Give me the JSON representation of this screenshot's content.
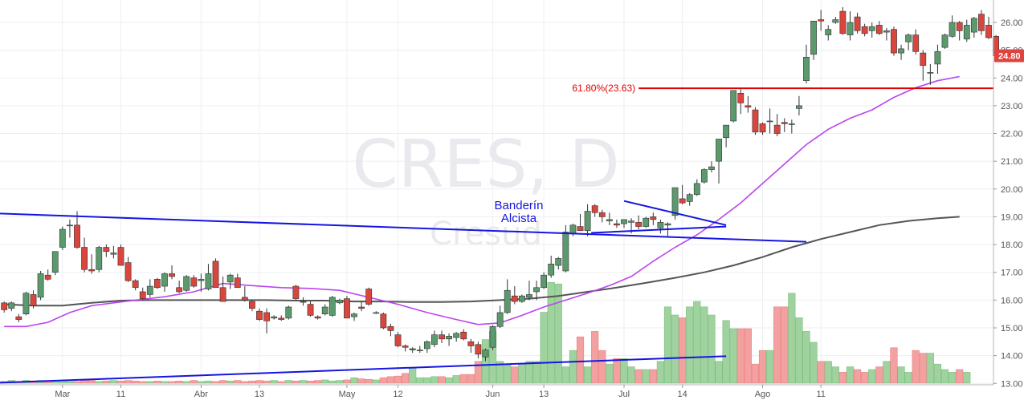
{
  "chart_data": {
    "type": "candlestick",
    "symbol": "CRES",
    "interval": "D",
    "watermark_title": "CRES, D",
    "watermark_subtitle": "Cresud",
    "ylim": [
      12.95,
      26.75
    ],
    "y_ticks": [
      "13.00",
      "14.00",
      "15.00",
      "16.00",
      "17.00",
      "18.00",
      "19.00",
      "20.00",
      "21.00",
      "22.00",
      "23.00",
      "24.00",
      "25.00",
      "26.00"
    ],
    "x_ticks": [
      {
        "bar": 8,
        "label": "Mar"
      },
      {
        "bar": 16,
        "label": "11"
      },
      {
        "bar": 27,
        "label": "Abr"
      },
      {
        "bar": 35,
        "label": "13"
      },
      {
        "bar": 47,
        "label": "May"
      },
      {
        "bar": 54,
        "label": "12"
      },
      {
        "bar": 67,
        "label": "Jun"
      },
      {
        "bar": 74,
        "label": "13"
      },
      {
        "bar": 85,
        "label": "Jul"
      },
      {
        "bar": 93,
        "label": "14"
      },
      {
        "bar": 104,
        "label": "Ago"
      },
      {
        "bar": 112,
        "label": "11"
      }
    ],
    "colors": {
      "up": "#5b9a6c",
      "down": "#d9463e",
      "up_vol": "#9fd29f",
      "down_vol": "#f3a0a0",
      "ma_fast": "#bb44ee",
      "ma_slow": "#555555",
      "trend": "#1515e0",
      "fib": "#e00000"
    },
    "candles": [
      [
        15.9,
        15.95,
        15.55,
        15.65
      ],
      [
        15.7,
        15.95,
        15.6,
        15.9
      ],
      [
        15.4,
        15.5,
        15.2,
        15.3
      ],
      [
        15.5,
        16.3,
        15.45,
        16.25
      ],
      [
        16.2,
        16.35,
        15.7,
        15.8
      ],
      [
        16.1,
        17.05,
        16.0,
        16.95
      ],
      [
        16.9,
        17.1,
        16.7,
        16.75
      ],
      [
        17.0,
        17.75,
        16.9,
        17.75
      ],
      [
        17.9,
        18.65,
        17.8,
        18.55
      ],
      [
        18.7,
        18.9,
        18.25,
        18.7
      ],
      [
        18.7,
        19.2,
        17.85,
        17.9
      ],
      [
        17.9,
        18.25,
        17.0,
        17.1
      ],
      [
        17.1,
        17.65,
        16.95,
        17.05
      ],
      [
        17.1,
        17.95,
        17.0,
        17.9
      ],
      [
        17.9,
        18.0,
        17.55,
        17.75
      ],
      [
        17.65,
        17.95,
        17.5,
        17.7
      ],
      [
        17.9,
        18.0,
        17.25,
        17.25
      ],
      [
        17.35,
        17.55,
        16.65,
        16.7
      ],
      [
        16.7,
        16.75,
        16.35,
        16.45
      ],
      [
        16.3,
        16.45,
        16.0,
        16.05
      ],
      [
        16.2,
        16.75,
        16.1,
        16.5
      ],
      [
        16.75,
        16.8,
        16.4,
        16.45
      ],
      [
        16.5,
        17.0,
        16.3,
        16.95
      ],
      [
        16.95,
        17.25,
        16.75,
        16.85
      ],
      [
        16.45,
        16.7,
        16.25,
        16.3
      ],
      [
        16.35,
        16.9,
        16.3,
        16.85
      ],
      [
        16.8,
        16.9,
        16.45,
        16.5
      ],
      [
        16.7,
        16.95,
        16.3,
        16.75
      ],
      [
        16.4,
        17.3,
        16.35,
        16.95
      ],
      [
        17.4,
        17.5,
        16.45,
        16.45
      ],
      [
        16.45,
        16.85,
        15.95,
        15.95
      ],
      [
        16.65,
        16.95,
        16.4,
        16.9
      ],
      [
        16.8,
        16.95,
        16.45,
        16.45
      ],
      [
        16.1,
        16.5,
        15.95,
        16.0
      ],
      [
        15.95,
        16.0,
        15.6,
        15.7
      ],
      [
        15.6,
        15.7,
        15.25,
        15.3
      ],
      [
        15.55,
        15.7,
        14.8,
        15.25
      ],
      [
        15.35,
        15.45,
        15.3,
        15.4
      ],
      [
        15.35,
        15.45,
        15.25,
        15.3
      ],
      [
        15.35,
        15.8,
        15.3,
        15.75
      ],
      [
        16.5,
        16.55,
        16.0,
        16.05
      ],
      [
        15.95,
        16.1,
        15.8,
        15.95
      ],
      [
        15.85,
        15.95,
        15.4,
        15.45
      ],
      [
        15.4,
        15.45,
        15.3,
        15.35
      ],
      [
        15.5,
        15.85,
        15.45,
        15.75
      ],
      [
        15.45,
        16.15,
        15.4,
        16.1
      ],
      [
        15.9,
        16.05,
        15.85,
        16.0
      ],
      [
        16.05,
        16.15,
        15.35,
        15.35
      ],
      [
        15.4,
        15.55,
        15.25,
        15.5
      ],
      [
        15.75,
        15.95,
        15.6,
        15.7
      ],
      [
        16.4,
        16.45,
        15.8,
        15.85
      ],
      [
        15.55,
        15.6,
        15.5,
        15.55
      ],
      [
        15.5,
        15.55,
        14.95,
        15.0
      ],
      [
        15.05,
        15.15,
        14.7,
        14.9
      ],
      [
        14.75,
        14.85,
        14.3,
        14.35
      ],
      [
        14.35,
        14.4,
        14.15,
        14.3
      ],
      [
        14.2,
        14.3,
        14.1,
        14.25
      ],
      [
        14.2,
        14.35,
        14.1,
        14.2
      ],
      [
        14.25,
        14.55,
        14.1,
        14.5
      ],
      [
        14.4,
        14.9,
        14.3,
        14.75
      ],
      [
        14.75,
        14.9,
        14.45,
        14.6
      ],
      [
        14.6,
        14.8,
        14.35,
        14.7
      ],
      [
        14.65,
        14.85,
        14.5,
        14.8
      ],
      [
        14.85,
        14.95,
        14.55,
        14.6
      ],
      [
        14.5,
        14.6,
        14.1,
        14.35
      ],
      [
        14.4,
        14.5,
        13.9,
        14.05
      ],
      [
        13.95,
        14.25,
        13.8,
        14.2
      ],
      [
        14.3,
        15.1,
        14.2,
        15.05
      ],
      [
        15.05,
        15.8,
        15.0,
        15.55
      ],
      [
        15.55,
        16.75,
        15.5,
        16.35
      ],
      [
        16.15,
        16.5,
        15.85,
        15.95
      ],
      [
        15.95,
        16.2,
        15.9,
        16.15
      ],
      [
        16.1,
        16.7,
        16.0,
        16.2
      ],
      [
        16.3,
        16.7,
        16.0,
        16.45
      ],
      [
        16.45,
        17.0,
        16.4,
        16.9
      ],
      [
        16.9,
        17.6,
        16.8,
        17.3
      ],
      [
        17.25,
        17.55,
        17.1,
        17.5
      ],
      [
        17.05,
        18.7,
        17.0,
        18.45
      ],
      [
        18.4,
        18.75,
        18.3,
        18.7
      ],
      [
        18.65,
        19.1,
        18.5,
        18.5
      ],
      [
        18.5,
        19.45,
        18.3,
        19.2
      ],
      [
        19.4,
        19.45,
        19.0,
        19.15
      ],
      [
        19.15,
        19.25,
        18.8,
        19.0
      ],
      [
        18.85,
        19.15,
        18.7,
        18.9
      ],
      [
        18.75,
        18.9,
        18.6,
        18.7
      ],
      [
        18.75,
        18.9,
        18.6,
        18.9
      ],
      [
        18.8,
        18.95,
        18.4,
        18.85
      ],
      [
        18.8,
        19.05,
        18.55,
        18.65
      ],
      [
        18.65,
        19.0,
        18.6,
        18.95
      ],
      [
        19.0,
        19.15,
        18.7,
        18.9
      ],
      [
        18.6,
        18.9,
        18.4,
        18.8
      ],
      [
        18.7,
        18.8,
        18.3,
        18.75
      ],
      [
        19.05,
        20.05,
        18.9,
        20.05
      ],
      [
        19.65,
        20.15,
        19.45,
        19.5
      ],
      [
        19.55,
        19.85,
        19.4,
        19.8
      ],
      [
        19.8,
        20.35,
        19.75,
        20.2
      ],
      [
        20.25,
        20.75,
        20.2,
        20.7
      ],
      [
        20.7,
        21.0,
        20.6,
        20.8
      ],
      [
        21.0,
        21.75,
        20.2,
        21.8
      ],
      [
        21.85,
        22.3,
        21.5,
        22.3
      ],
      [
        22.45,
        23.55,
        22.4,
        23.55
      ],
      [
        23.45,
        23.6,
        22.7,
        23.1
      ],
      [
        23.0,
        23.35,
        22.75,
        22.95
      ],
      [
        22.85,
        22.95,
        21.95,
        22.05
      ],
      [
        22.35,
        22.4,
        21.95,
        22.05
      ],
      [
        22.45,
        22.9,
        22.0,
        22.45
      ],
      [
        22.3,
        22.7,
        21.9,
        22.0
      ],
      [
        22.4,
        22.55,
        22.05,
        22.35
      ],
      [
        22.35,
        22.5,
        22.0,
        22.35
      ],
      [
        22.9,
        23.35,
        22.65,
        23.0
      ],
      [
        23.9,
        25.2,
        23.8,
        24.75
      ],
      [
        24.85,
        26.0,
        24.65,
        26.05
      ],
      [
        26.1,
        26.45,
        25.7,
        26.05
      ],
      [
        25.55,
        25.9,
        25.35,
        25.75
      ],
      [
        26.0,
        26.2,
        25.95,
        26.1
      ],
      [
        26.4,
        26.55,
        25.55,
        25.6
      ],
      [
        25.55,
        26.4,
        25.35,
        26.0
      ],
      [
        26.2,
        26.35,
        25.6,
        25.7
      ],
      [
        25.85,
        25.95,
        25.5,
        25.6
      ],
      [
        25.7,
        26.0,
        25.45,
        25.85
      ],
      [
        25.9,
        26.05,
        25.55,
        25.6
      ],
      [
        25.65,
        25.8,
        25.35,
        25.7
      ],
      [
        25.75,
        25.85,
        24.8,
        24.9
      ],
      [
        24.9,
        25.2,
        24.65,
        25.05
      ],
      [
        25.3,
        25.6,
        25.0,
        25.55
      ],
      [
        25.55,
        25.75,
        24.85,
        24.95
      ],
      [
        24.9,
        25.0,
        23.9,
        24.45
      ],
      [
        24.2,
        24.5,
        23.75,
        24.2
      ],
      [
        24.5,
        25.2,
        24.15,
        24.95
      ],
      [
        25.1,
        25.6,
        25.05,
        25.55
      ],
      [
        25.5,
        26.25,
        25.45,
        26.0
      ],
      [
        26.0,
        26.05,
        25.35,
        25.7
      ],
      [
        25.4,
        26.1,
        25.3,
        25.9
      ],
      [
        25.65,
        26.2,
        25.45,
        26.15
      ],
      [
        26.3,
        26.45,
        25.55,
        25.7
      ],
      [
        25.9,
        26.2,
        25.4,
        25.45
      ],
      [
        25.5,
        25.55,
        24.75,
        24.8
      ]
    ],
    "volume": [
      0.03,
      0.05,
      0.03,
      0.05,
      0.03,
      0.05,
      0.03,
      0.05,
      0.05,
      0.03,
      0.03,
      0.05,
      0.05,
      0.03,
      0.04,
      0.05,
      0.04,
      0.05,
      0.04,
      0.03,
      0.03,
      0.04,
      0.03,
      0.03,
      0.04,
      0.03,
      0.05,
      0.03,
      0.04,
      0.03,
      0.05,
      0.04,
      0.05,
      0.03,
      0.04,
      0.05,
      0.04,
      0.05,
      0.03,
      0.05,
      0.04,
      0.05,
      0.04,
      0.05,
      0.06,
      0.04,
      0.05,
      0.06,
      0.1,
      0.08,
      0.07,
      0.06,
      0.1,
      0.12,
      0.13,
      0.18,
      0.28,
      0.1,
      0.1,
      0.12,
      0.12,
      0.1,
      0.14,
      0.16,
      0.16,
      0.4,
      0.8,
      0.95,
      0.4,
      0.35,
      0.3,
      0.35,
      0.4,
      0.4,
      1.3,
      1.85,
      1.82,
      0.3,
      0.6,
      0.85,
      0.3,
      0.95,
      0.6,
      0.35,
      0.45,
      0.45,
      0.3,
      0.25,
      0.25,
      0.25,
      0.4,
      1.4,
      1.25,
      1.2,
      1.4,
      1.5,
      1.4,
      1.25,
      0.4,
      1.15,
      1.0,
      1.0,
      1.0,
      0.35,
      0.6,
      0.6,
      1.4,
      1.4,
      1.65,
      1.2,
      0.95,
      0.75,
      0.4,
      0.4,
      0.3,
      0.2,
      0.3,
      0.25,
      0.2,
      0.25,
      0.3,
      0.4,
      0.65,
      0.3,
      0.2,
      0.6,
      0.55,
      0.55,
      0.35,
      0.25,
      0.2,
      0.25,
      0.2
    ],
    "ma_fast": [
      [
        0,
        15.05
      ],
      [
        3,
        15.05
      ],
      [
        6,
        15.2
      ],
      [
        9,
        15.55
      ],
      [
        12,
        15.8
      ],
      [
        15,
        15.9
      ],
      [
        18,
        16.0
      ],
      [
        22,
        16.12
      ],
      [
        26,
        16.3
      ],
      [
        30,
        16.6
      ],
      [
        34,
        16.52
      ],
      [
        38,
        16.45
      ],
      [
        42,
        16.42
      ],
      [
        46,
        16.35
      ],
      [
        50,
        16.1
      ],
      [
        54,
        15.85
      ],
      [
        58,
        15.55
      ],
      [
        62,
        15.3
      ],
      [
        65,
        15.12
      ],
      [
        68,
        15.18
      ],
      [
        71,
        15.45
      ],
      [
        74,
        15.75
      ],
      [
        77,
        16.0
      ],
      [
        80,
        16.25
      ],
      [
        83,
        16.52
      ],
      [
        86,
        16.85
      ],
      [
        89,
        17.4
      ],
      [
        92,
        17.9
      ],
      [
        95,
        18.35
      ],
      [
        98,
        18.9
      ],
      [
        101,
        19.5
      ],
      [
        104,
        20.2
      ],
      [
        107,
        20.9
      ],
      [
        110,
        21.6
      ],
      [
        113,
        22.15
      ],
      [
        116,
        22.55
      ],
      [
        119,
        22.85
      ],
      [
        122,
        23.3
      ],
      [
        125,
        23.65
      ],
      [
        128,
        23.9
      ],
      [
        131,
        24.05
      ]
    ],
    "ma_slow": [
      [
        0,
        15.85
      ],
      [
        4,
        15.8
      ],
      [
        8,
        15.8
      ],
      [
        12,
        15.9
      ],
      [
        16,
        15.98
      ],
      [
        20,
        16.0
      ],
      [
        24,
        16.0
      ],
      [
        28,
        16.0
      ],
      [
        32,
        16.0
      ],
      [
        36,
        16.0
      ],
      [
        40,
        15.98
      ],
      [
        44,
        15.98
      ],
      [
        48,
        15.95
      ],
      [
        52,
        15.95
      ],
      [
        56,
        15.93
      ],
      [
        60,
        15.93
      ],
      [
        64,
        15.95
      ],
      [
        68,
        16.0
      ],
      [
        72,
        16.05
      ],
      [
        76,
        16.15
      ],
      [
        80,
        16.3
      ],
      [
        84,
        16.45
      ],
      [
        88,
        16.62
      ],
      [
        92,
        16.8
      ],
      [
        96,
        17.0
      ],
      [
        100,
        17.25
      ],
      [
        104,
        17.55
      ],
      [
        108,
        17.9
      ],
      [
        112,
        18.2
      ],
      [
        116,
        18.45
      ],
      [
        120,
        18.7
      ],
      [
        124,
        18.85
      ],
      [
        128,
        18.95
      ],
      [
        131,
        19.0
      ]
    ],
    "fib_level": {
      "label": "61.80%(23.63)",
      "value": 23.63,
      "from_bar": 87,
      "to_bar": 131
    },
    "annotation": [
      "Banderín",
      "Alcista"
    ],
    "trendlines": [
      {
        "name": "upper-resistance",
        "p1": [
          -1.0,
          19.12
        ],
        "p2": [
          110.0,
          18.1
        ]
      },
      {
        "name": "lower-support",
        "p1": [
          -1.0,
          13.02
        ],
        "p2": [
          99.0,
          13.98
        ]
      },
      {
        "name": "flag-top",
        "p1": [
          85.0,
          19.57
        ],
        "p2": [
          99.0,
          18.7
        ]
      },
      {
        "name": "flag-bottom",
        "p1": [
          80.5,
          18.42
        ],
        "p2": [
          99.0,
          18.65
        ]
      }
    ],
    "last_price": {
      "label": "24.80",
      "value": 24.8,
      "color": "#e0433d"
    }
  }
}
